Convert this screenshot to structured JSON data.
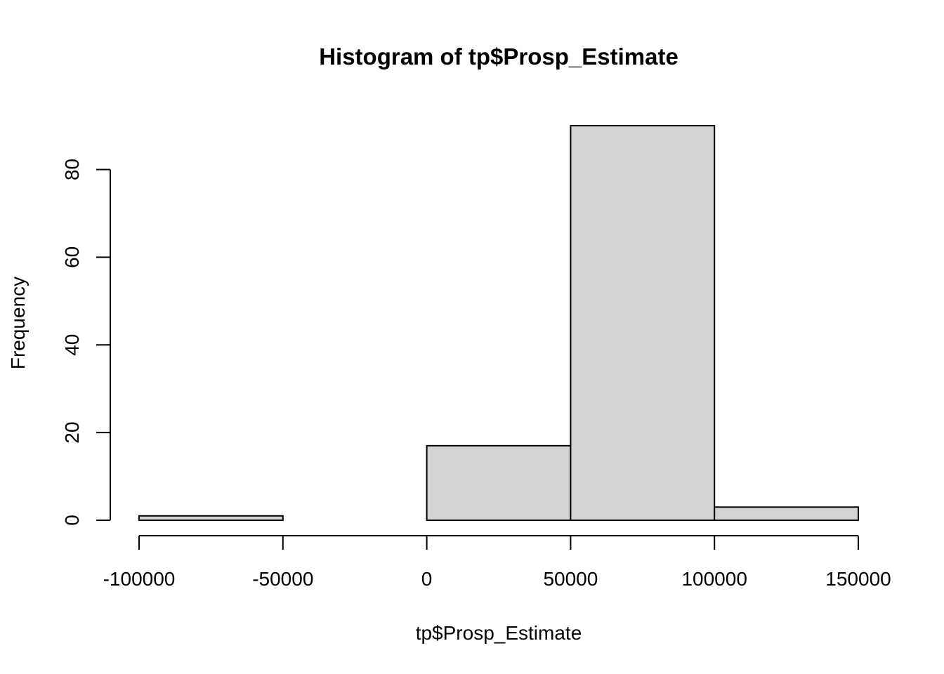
{
  "chart_data": {
    "type": "bar",
    "subtype": "histogram",
    "title": "Histogram of tp$Prosp_Estimate",
    "xlabel": "tp$Prosp_Estimate",
    "ylabel": "Frequency",
    "bins": [
      {
        "from": -100000,
        "to": -50000,
        "count": 1
      },
      {
        "from": -50000,
        "to": 0,
        "count": 0
      },
      {
        "from": 0,
        "to": 50000,
        "count": 17
      },
      {
        "from": 50000,
        "to": 100000,
        "count": 90
      },
      {
        "from": 100000,
        "to": 150000,
        "count": 3
      }
    ],
    "x_ticks": [
      -100000,
      -50000,
      0,
      50000,
      100000,
      150000
    ],
    "x_tick_labels": [
      "-100000",
      "-50000",
      "0",
      "50000",
      "100000",
      "150000"
    ],
    "y_ticks": [
      0,
      20,
      40,
      60,
      80
    ],
    "y_tick_labels": [
      "0",
      "20",
      "40",
      "60",
      "80"
    ],
    "xlim": [
      -100000,
      150000
    ],
    "ylim": [
      0,
      90
    ],
    "bar_fill": "#d3d3d3",
    "bar_stroke": "#000000",
    "grid": false,
    "legend": "none"
  }
}
